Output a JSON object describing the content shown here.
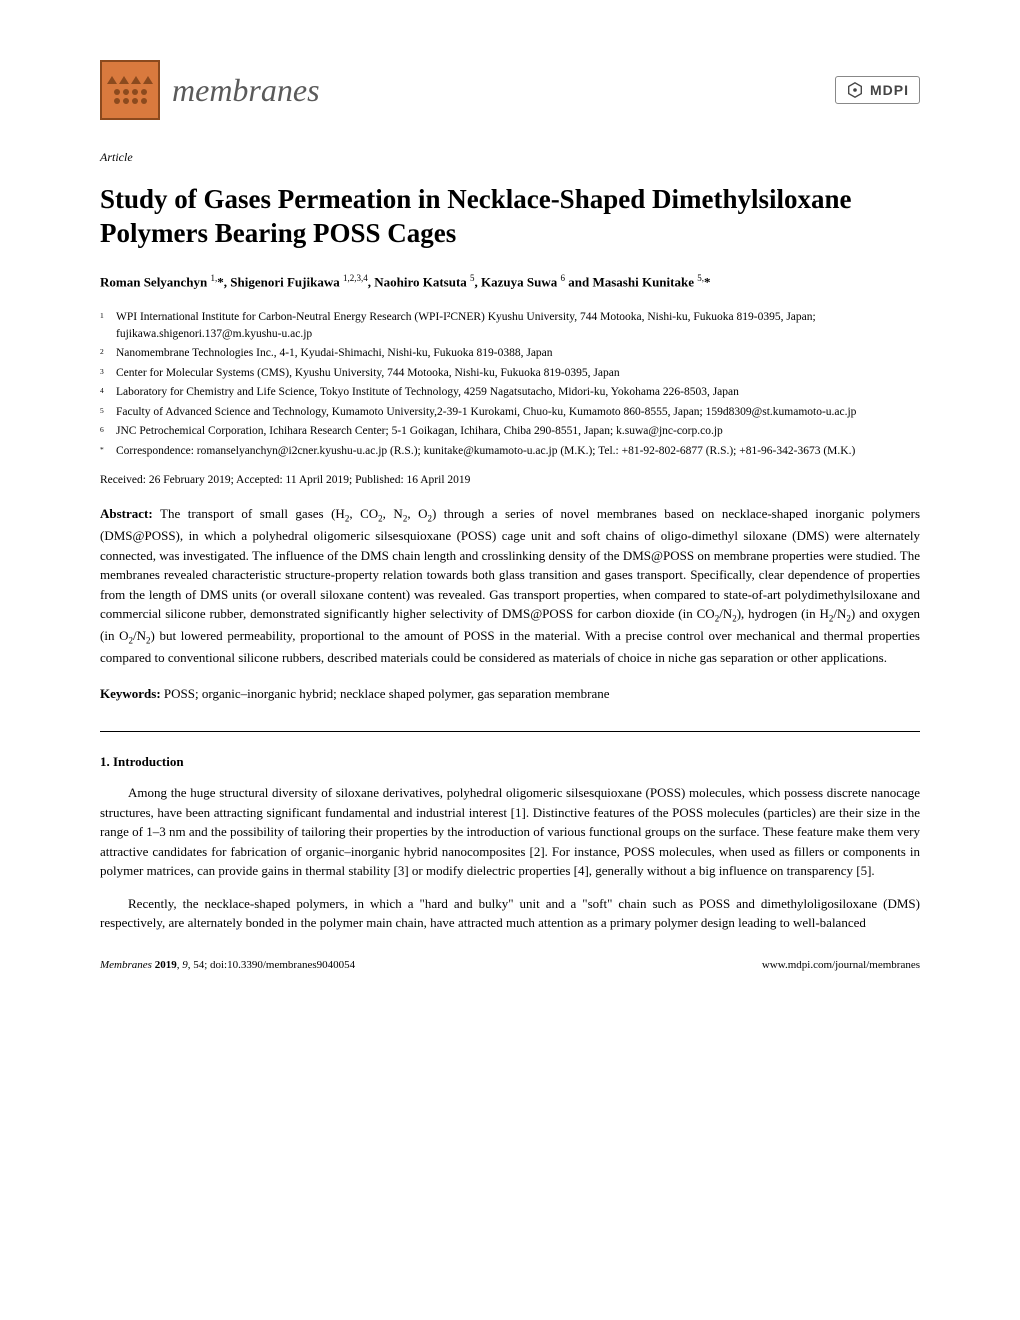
{
  "header": {
    "journal_name": "membranes",
    "publisher": "MDPI"
  },
  "article_type": "Article",
  "title": "Study of Gases Permeation in Necklace-Shaped Dimethylsiloxane Polymers Bearing POSS Cages",
  "authors_html": "Roman Selyanchyn <sup>1,</sup>*, Shigenori Fujikawa <sup>1,2,3,4</sup>, Naohiro Katsuta <sup>5</sup>, Kazuya Suwa <sup>6</sup> and Masashi Kunitake <sup>5,</sup>*",
  "affiliations": [
    {
      "num": "1",
      "text": "WPI International Institute for Carbon-Neutral Energy Research (WPI-I²CNER) Kyushu University, 744 Motooka, Nishi-ku, Fukuoka 819-0395, Japan; fujikawa.shigenori.137@m.kyushu-u.ac.jp"
    },
    {
      "num": "2",
      "text": "Nanomembrane Technologies Inc., 4-1, Kyudai-Shimachi, Nishi-ku, Fukuoka 819-0388, Japan"
    },
    {
      "num": "3",
      "text": "Center for Molecular Systems (CMS), Kyushu University, 744 Motooka, Nishi-ku, Fukuoka 819-0395, Japan"
    },
    {
      "num": "4",
      "text": "Laboratory for Chemistry and Life Science, Tokyo Institute of Technology, 4259 Nagatsutacho, Midori-ku, Yokohama 226-8503, Japan"
    },
    {
      "num": "5",
      "text": "Faculty of Advanced Science and Technology, Kumamoto University,2-39-1 Kurokami, Chuo-ku, Kumamoto 860-8555, Japan; 159d8309@st.kumamoto-u.ac.jp"
    },
    {
      "num": "6",
      "text": "JNC Petrochemical Corporation, Ichihara Research Center; 5-1 Goikagan, Ichihara, Chiba 290-8551, Japan; k.suwa@jnc-corp.co.jp"
    },
    {
      "num": "*",
      "text": "Correspondence: romanselyanchyn@i2cner.kyushu-u.ac.jp (R.S.); kunitake@kumamoto-u.ac.jp (M.K.); Tel.: +81-92-802-6877 (R.S.); +81-96-342-3673 (M.K.)"
    }
  ],
  "dates": "Received: 26 February 2019; Accepted: 11 April 2019; Published: 16 April 2019",
  "abstract_label": "Abstract:",
  "abstract_html": "The transport of small gases (H<sub>2</sub>, CO<sub>2</sub>, N<sub>2</sub>, O<sub>2</sub>) through a series of novel membranes based on necklace-shaped inorganic polymers (DMS@POSS), in which a polyhedral oligomeric silsesquioxane (POSS) cage unit and soft chains of oligo-dimethyl siloxane (DMS) were alternately connected, was investigated. The influence of the DMS chain length and crosslinking density of the DMS@POSS on membrane properties were studied. The membranes revealed characteristic structure-property relation towards both glass transition and gases transport. Specifically, clear dependence of properties from the length of DMS units (or overall siloxane content) was revealed. Gas transport properties, when compared to state-of-art polydimethylsiloxane and commercial silicone rubber, demonstrated significantly higher selectivity of DMS@POSS for carbon dioxide (in CO<sub>2</sub>/N<sub>2</sub>), hydrogen (in H<sub>2</sub>/N<sub>2</sub>) and oxygen (in O<sub>2</sub>/N<sub>2</sub>) but lowered permeability, proportional to the amount of POSS in the material. With a precise control over mechanical and thermal properties compared to conventional silicone rubbers, described materials could be considered as materials of choice in niche gas separation or other applications.",
  "keywords_label": "Keywords:",
  "keywords_text": "POSS; organic–inorganic hybrid; necklace shaped polymer, gas separation membrane",
  "section1_heading": "1. Introduction",
  "intro_para1": "Among the huge structural diversity of siloxane derivatives, polyhedral oligomeric silsesquioxane (POSS) molecules, which possess discrete nanocage structures, have been attracting significant fundamental and industrial interest [1]. Distinctive features of the POSS molecules (particles) are their size in the range of 1–3 nm and the possibility of tailoring their properties by the introduction of various functional groups on the surface. These feature make them very attractive candidates for fabrication of organic–inorganic hybrid nanocomposites [2]. For instance, POSS molecules, when used as fillers or components in polymer matrices, can provide gains in thermal stability [3] or modify dielectric properties [4], generally without a big influence on transparency [5].",
  "intro_para2": "Recently, the necklace-shaped polymers, in which a \"hard and  bulky\" unit and a \"soft\" chain such as POSS and dimethyloligosiloxane (DMS) respectively, are alternately bonded in the polymer main chain, have attracted much attention as a primary polymer design leading to well-balanced",
  "footer": {
    "journal": "Membranes",
    "year": "2019",
    "volume_issue": "9",
    "page": "54",
    "doi": "doi:10.3390/membranes9040054",
    "url": "www.mdpi.com/journal/membranes"
  },
  "colors": {
    "logo_bg": "#d97a3e",
    "logo_border": "#8b4a1e",
    "journal_name": "#5a5a5a",
    "text": "#000000",
    "mdpi_border": "#888888",
    "mdpi_text": "#444444",
    "background": "#ffffff"
  },
  "typography": {
    "body_font": "Palatino Linotype",
    "title_size_pt": 20,
    "body_size_pt": 10,
    "aff_size_pt": 9,
    "footer_size_pt": 8
  }
}
